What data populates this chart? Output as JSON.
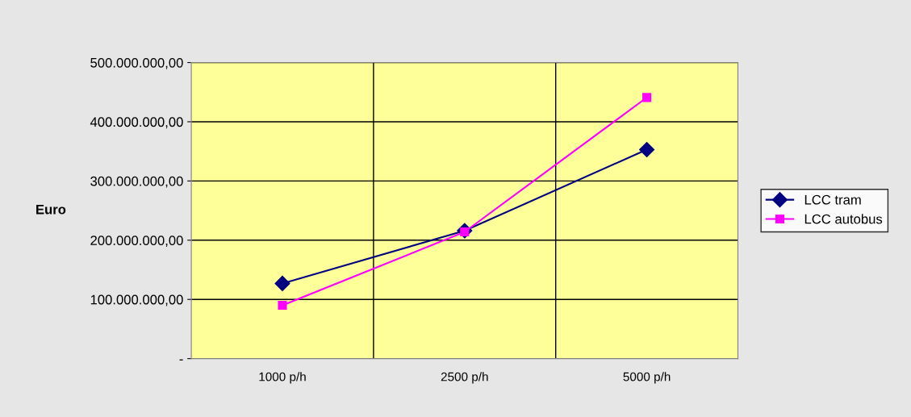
{
  "chart_data": {
    "type": "line",
    "ylabel": "Euro",
    "categories": [
      "1000 p/h",
      "2500 p/h",
      "5000 p/h"
    ],
    "series": [
      {
        "name": "LCC tram",
        "color": "#000080",
        "marker": "diamond",
        "values": [
          127000000,
          216000000,
          353000000
        ]
      },
      {
        "name": "LCC autobus",
        "color": "#ff00ff",
        "marker": "square",
        "values": [
          90000000,
          214000000,
          441000000
        ]
      }
    ],
    "ylim": [
      0,
      500000000
    ],
    "yticks": [
      {
        "value": 0,
        "label": "-"
      },
      {
        "value": 100000000,
        "label": "100.000.000,00"
      },
      {
        "value": 200000000,
        "label": "200.000.000,00"
      },
      {
        "value": 300000000,
        "label": "300.000.000,00"
      },
      {
        "value": 400000000,
        "label": "400.000.000,00"
      },
      {
        "value": 500000000,
        "label": "500.000.000,00"
      }
    ],
    "grid": true,
    "legend": "right",
    "line_style": "solid"
  }
}
